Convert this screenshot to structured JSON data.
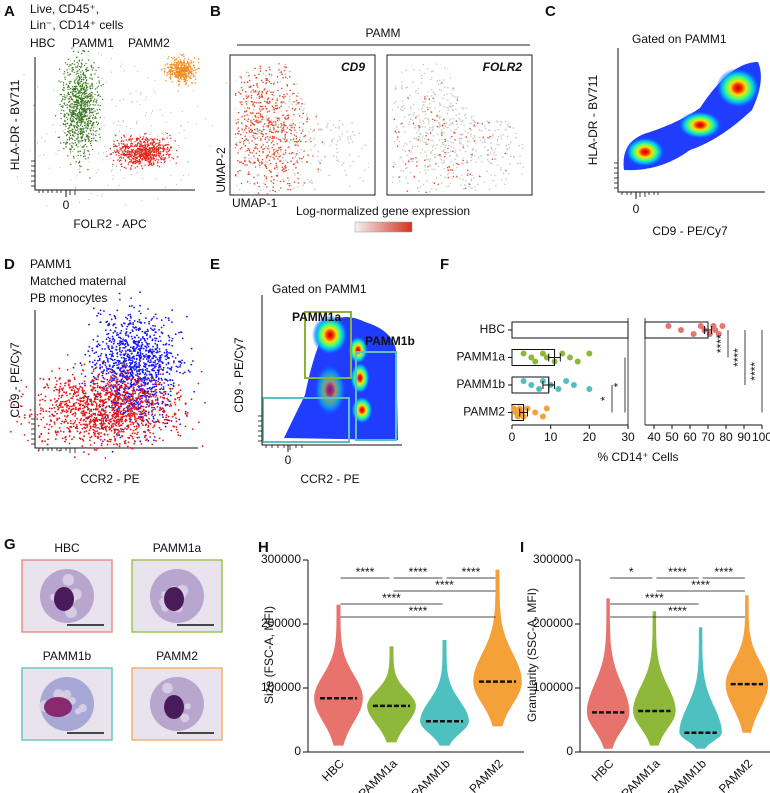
{
  "panels": {
    "A": {
      "label": "A",
      "header": [
        "Live, CD45⁺,",
        "Lin⁻, CD14⁺ cells"
      ],
      "legend": [
        {
          "name": "HBC",
          "color": "#e3261c"
        },
        {
          "name": "PAMM1",
          "color": "#3b7a1f"
        },
        {
          "name": "PAMM2",
          "color": "#f08c22"
        }
      ],
      "y_label": "HLA-DR - BV711",
      "x_label": "FOLR2 - APC",
      "x_ticks": [
        0
      ]
    },
    "B": {
      "label": "B",
      "title": "PAMM",
      "genes": [
        "CD9",
        "FOLR2"
      ],
      "y_label": "UMAP-2",
      "x_label": "UMAP-1",
      "color_scale": "Log-normalized gene expression"
    },
    "C": {
      "label": "C",
      "title": "Gated on PAMM1",
      "y_label": "HLA-DR - BV711",
      "x_label": "CD9 - PE/Cy7",
      "x_ticks": [
        0
      ]
    },
    "D": {
      "label": "D",
      "legend": [
        {
          "lines": [
            "PAMM1"
          ],
          "color": "#1515f0"
        },
        {
          "lines": [
            "Matched maternal",
            "PB monocytes"
          ],
          "color": "#e31a1a"
        }
      ],
      "y_label": "CD9 - PE/Cy7",
      "x_label": "CCR2 - PE"
    },
    "E": {
      "label": "E",
      "title": "Gated on PAMM1",
      "gates": [
        {
          "name": "PAMM1a",
          "color": "#8bb23a"
        },
        {
          "name": "PAMM1b",
          "color": "#5cc0c4"
        }
      ],
      "y_label": "CD9 - PE/Cy7",
      "x_label": "CCR2 - PE",
      "x_ticks": [
        0
      ]
    },
    "G": {
      "label": "G",
      "images": [
        {
          "name": "HBC",
          "color": "#e8908a"
        },
        {
          "name": "PAMM1a",
          "color": "#9cc45a"
        },
        {
          "name": "PAMM1b",
          "color": "#6fc6c8"
        },
        {
          "name": "PAMM2",
          "color": "#f0b070"
        }
      ]
    }
  },
  "chart_data": [
    {
      "type": "bar",
      "label": "F",
      "orientation": "horizontal",
      "categories": [
        "HBC",
        "PAMM1a",
        "PAMM1b",
        "PAMM2"
      ],
      "colors": [
        "#e8736c",
        "#8db83a",
        "#4fc0c0",
        "#f5a13a"
      ],
      "values": [
        70,
        11,
        9.5,
        3
      ],
      "errors": [
        2,
        1.5,
        1.5,
        1
      ],
      "points": [
        [
          48,
          55,
          62,
          66,
          68,
          71,
          73,
          74,
          76,
          78
        ],
        [
          3,
          5,
          6,
          8,
          9,
          11,
          13,
          15,
          17,
          20
        ],
        [
          3,
          5,
          7,
          8,
          10,
          12,
          14,
          16,
          20
        ],
        [
          0.5,
          1,
          1.5,
          2,
          2.5,
          3,
          4,
          6,
          8,
          9
        ]
      ],
      "xlim": [
        0,
        100
      ],
      "axis_break": [
        30,
        35
      ],
      "xticks": [
        0,
        10,
        20,
        30,
        40,
        50,
        60,
        70,
        80,
        90,
        100
      ],
      "x_label": "% CD14⁺ Cells",
      "significance": [
        "****",
        "****",
        "****",
        "*",
        "*"
      ]
    },
    {
      "type": "violin",
      "label": "H",
      "categories": [
        "HBC",
        "PAMM1a",
        "PAMM1b",
        "PAMM2"
      ],
      "colors": [
        "#e8736c",
        "#8db83a",
        "#4fc0c0",
        "#f5a13a"
      ],
      "medians": [
        84000,
        72000,
        48000,
        110000
      ],
      "min": [
        10000,
        15000,
        10000,
        40000
      ],
      "max": [
        230000,
        165000,
        175000,
        285000
      ],
      "ylim": [
        0,
        300000
      ],
      "yticks": [
        0,
        100000,
        200000,
        300000
      ],
      "y_label": "Size (FSC-A, MFI)",
      "significance": [
        "****",
        "****",
        "****",
        "****",
        "****",
        "****"
      ]
    },
    {
      "type": "violin",
      "label": "I",
      "categories": [
        "HBC",
        "PAMM1a",
        "PAMM1b",
        "PAMM2"
      ],
      "colors": [
        "#e8736c",
        "#8db83a",
        "#4fc0c0",
        "#f5a13a"
      ],
      "medians": [
        62000,
        64000,
        30000,
        106000
      ],
      "min": [
        5000,
        10000,
        5000,
        30000
      ],
      "max": [
        240000,
        220000,
        195000,
        245000
      ],
      "ylim": [
        0,
        300000
      ],
      "yticks": [
        0,
        100000,
        200000,
        300000
      ],
      "y_label": "Granularity (SSC-A, MFI)",
      "significance": [
        "*",
        "****",
        "****",
        "****",
        "****",
        "****"
      ]
    }
  ]
}
